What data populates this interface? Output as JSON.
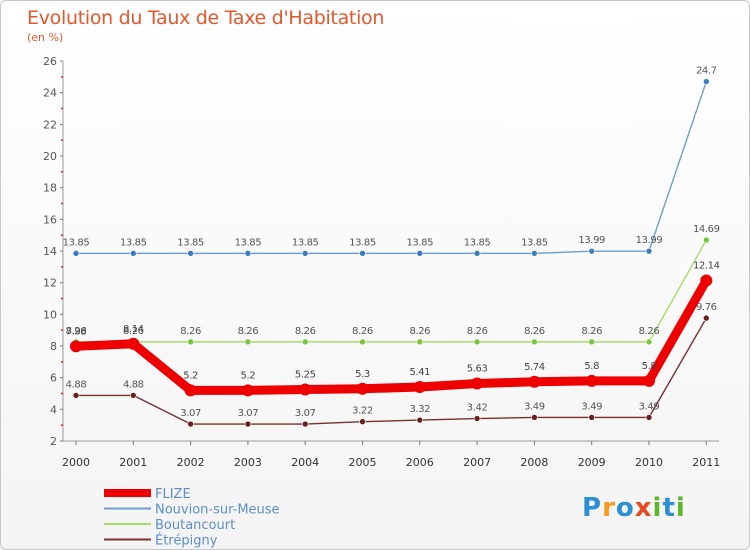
{
  "title": "Evolution du Taux de Taxe d'Habitation",
  "unit": "(en %)",
  "logo": [
    "P",
    "r",
    "o",
    "x",
    "i",
    "t",
    "i"
  ],
  "logo_colors": [
    "#2a8fd6",
    "#f39c1f",
    "#2a8fd6",
    "#e84a1f",
    "#5cb82a",
    "#2a8fd6",
    "#5cb82a"
  ],
  "chart_data": {
    "type": "line",
    "title": "Evolution du Taux de Taxe d'Habitation",
    "ylabel": "(en %)",
    "xlabel": "",
    "ylim": [
      2,
      26
    ],
    "yticks": [
      2,
      4,
      6,
      8,
      10,
      12,
      14,
      16,
      18,
      20,
      22,
      24,
      26
    ],
    "categories": [
      "2000",
      "2001",
      "2002",
      "2003",
      "2004",
      "2005",
      "2006",
      "2007",
      "2008",
      "2009",
      "2010",
      "2011"
    ],
    "series": [
      {
        "name": "Nouvion-sur-Meuse",
        "color": "#6f9fd1",
        "marker_color": "#3a7cc1",
        "values": [
          13.85,
          13.85,
          13.85,
          13.85,
          13.85,
          13.85,
          13.85,
          13.85,
          13.85,
          13.99,
          13.99,
          24.7
        ],
        "labels": [
          "13.85",
          "13.85",
          "13.85",
          "13.85",
          "13.85",
          "13.85",
          "13.85",
          "13.85",
          "13.85",
          "13.99",
          "13.99",
          "24.7"
        ]
      },
      {
        "name": "Boutancourt",
        "color": "#a6dc6a",
        "marker_color": "#79c43a",
        "values": [
          8.26,
          8.26,
          8.26,
          8.26,
          8.26,
          8.26,
          8.26,
          8.26,
          8.26,
          8.26,
          8.26,
          14.69
        ],
        "labels": [
          "8.26",
          "8.26",
          "8.26",
          "8.26",
          "8.26",
          "8.26",
          "8.26",
          "8.26",
          "8.26",
          "8.26",
          "8.26",
          "14.69"
        ]
      },
      {
        "name": "Étrépigny",
        "color": "#7a2f2f",
        "marker_color": "#6a1f1f",
        "values": [
          4.88,
          4.88,
          3.07,
          3.07,
          3.07,
          3.22,
          3.32,
          3.42,
          3.49,
          3.49,
          3.49,
          9.76
        ],
        "labels": [
          "4.88",
          "4.88",
          "3.07",
          "3.07",
          "3.07",
          "3.22",
          "3.32",
          "3.42",
          "3.49",
          "3.49",
          "3.49",
          "9.76"
        ]
      },
      {
        "name": "FLIZE",
        "color": "#ee0000",
        "marker_color": "#ee0000",
        "values": [
          7.98,
          8.14,
          5.2,
          5.2,
          5.25,
          5.3,
          5.41,
          5.63,
          5.74,
          5.8,
          5.8,
          12.14
        ],
        "labels": [
          "7.98",
          "8.14",
          "5.2",
          "5.2",
          "5.25",
          "5.3",
          "5.41",
          "5.63",
          "5.74",
          "5.8",
          "5.8",
          "12.14"
        ]
      }
    ],
    "legend": [
      "FLIZE",
      "Nouvion-sur-Meuse",
      "Boutancourt",
      "Étrépigny"
    ],
    "legend_position": "bottom-left",
    "grid": false
  }
}
